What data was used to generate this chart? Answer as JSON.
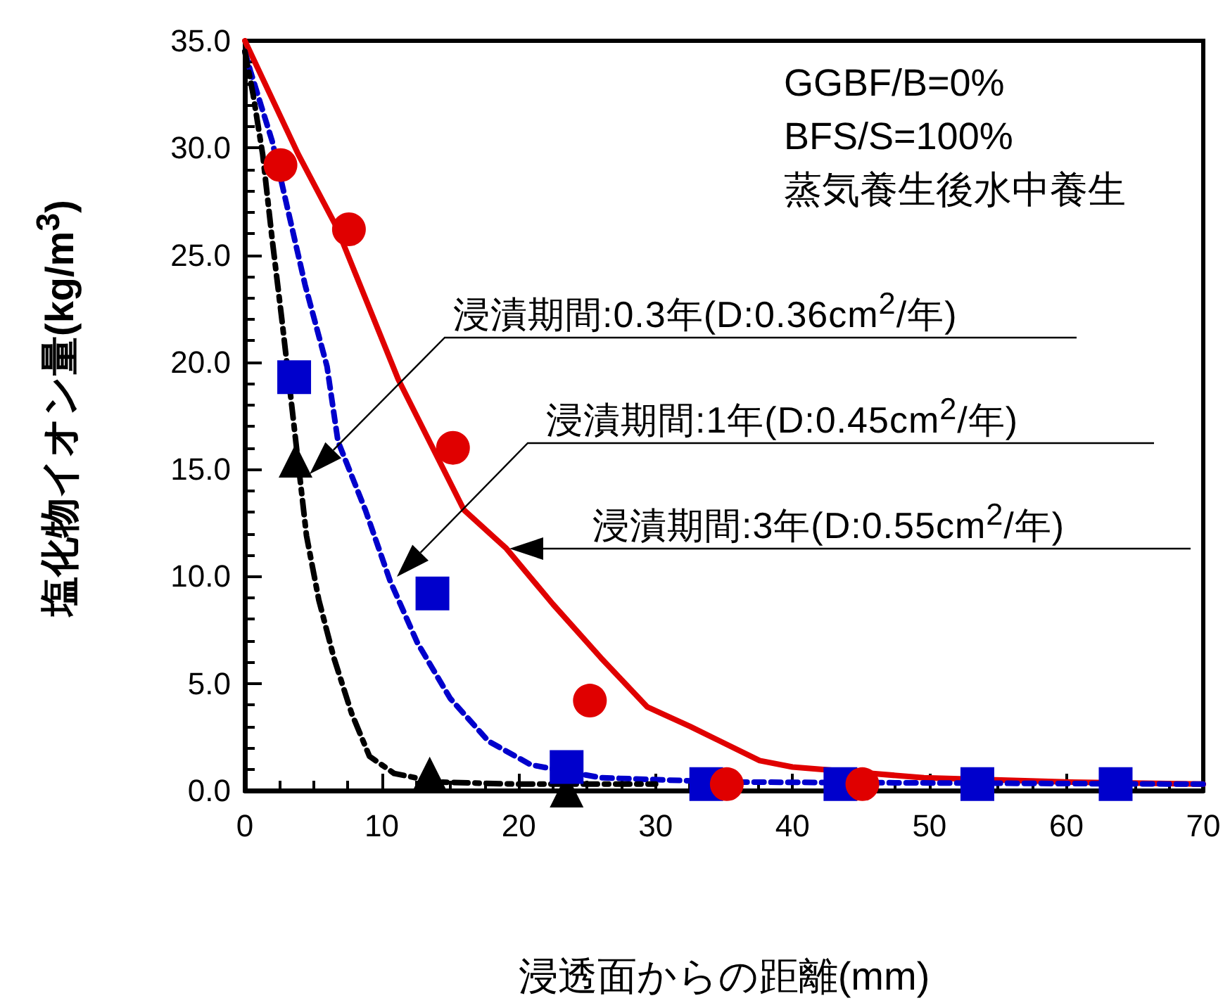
{
  "chart_data": {
    "type": "line",
    "xlabel": "浸透面からの距離(mm)",
    "ylabel": "塩化物イオン量(kg/m$^{3}$)",
    "xlim": [
      0,
      70
    ],
    "xticks": [
      0,
      10,
      20,
      30,
      40,
      50,
      60,
      70
    ],
    "ylim": [
      0,
      35
    ],
    "yticks": [
      {
        "value": 0,
        "label": "0.0"
      },
      {
        "value": 5,
        "label": "5.0"
      },
      {
        "value": 10,
        "label": "10.0"
      },
      {
        "value": 15,
        "label": "15.0"
      },
      {
        "value": 20,
        "label": "20.0"
      },
      {
        "value": 25,
        "label": "25.0"
      },
      {
        "value": 30,
        "label": "30.0"
      },
      {
        "value": 35,
        "label": "35.0"
      }
    ],
    "series": [
      {
        "type": "line",
        "color": "#e00000",
        "line_style": "solid",
        "marker": "none",
        "x": [
          0,
          3.9,
          6.7,
          11.2,
          16.0,
          19.1,
          22.5,
          26.0,
          29.4,
          32.5,
          37.6,
          40.0,
          49.6,
          60,
          70
        ],
        "values": [
          35,
          29.7,
          26.3,
          19.2,
          13.1,
          11.3,
          8.7,
          6.2,
          3.9,
          3.0,
          1.4,
          1.1,
          0.6,
          0.4,
          0.3
        ]
      },
      {
        "type": "line",
        "color": "#0000cc",
        "line_style": "dashed",
        "marker": "none",
        "x": [
          0,
          0.4,
          2.0,
          3.0,
          4.4,
          6.0,
          6.8,
          8.8,
          10.6,
          12.6,
          15.0,
          17.8,
          20.9,
          26.0,
          35,
          70
        ],
        "values": [
          34.5,
          33.6,
          30.3,
          27.5,
          23.6,
          19.8,
          16.3,
          13.1,
          9.8,
          6.9,
          4.3,
          2.3,
          1.2,
          0.6,
          0.4,
          0.3
        ]
      },
      {
        "type": "line",
        "color": "#000000",
        "line_style": "dashdot",
        "marker": "none",
        "x": [
          0,
          0.6,
          1.3,
          2.0,
          2.7,
          3.4,
          4.5,
          5.4,
          6.5,
          7.8,
          9.1,
          10.9,
          14,
          20,
          30
        ],
        "values": [
          34.5,
          32.5,
          29.7,
          25.7,
          22.0,
          18.1,
          11.9,
          8.9,
          6.2,
          3.6,
          1.6,
          0.8,
          0.4,
          0.3,
          0.3
        ]
      },
      {
        "type": "scatter",
        "color": "#000000",
        "marker": "triangle",
        "x": [
          3.7,
          13.5,
          23.5
        ],
        "values": [
          15.4,
          0.8,
          0.0
        ]
      },
      {
        "type": "scatter",
        "color": "#0000cc",
        "marker": "square",
        "x": [
          3.6,
          13.7,
          23.5,
          33.7,
          43.5,
          53.5,
          63.6
        ],
        "values": [
          19.3,
          9.2,
          1.1,
          0.3,
          0.3,
          0.3,
          0.3
        ]
      },
      {
        "type": "scatter",
        "color": "#e00000",
        "marker": "circle",
        "x": [
          2.6,
          7.6,
          15.2,
          25.2,
          35.2,
          45.1
        ],
        "values": [
          29.2,
          26.2,
          16.0,
          4.2,
          0.3,
          0.3
        ]
      }
    ],
    "annotations": [
      "GGBF/B=0%",
      "BFS/S=100%",
      "蒸気養生後水中養生",
      "浸漬期間:0.3年(D:0.36cm$^{2}$/年)",
      "浸漬期間:1年(D:0.45cm$^{2}$/年)",
      "浸漬期間:3年(D:0.55cm$^{2}$/年)"
    ]
  }
}
